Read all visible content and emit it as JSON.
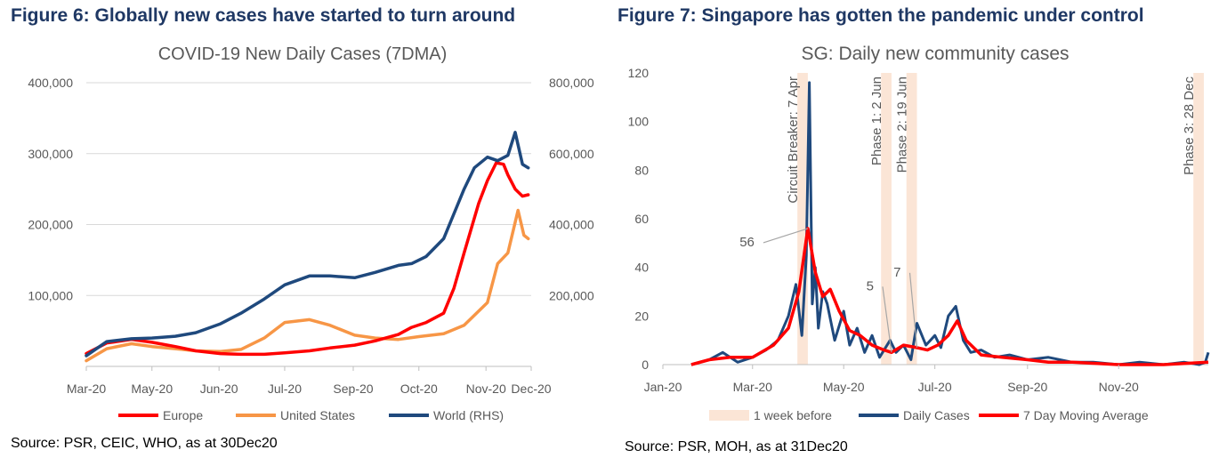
{
  "figures": [
    {
      "heading": "Figure 6: Globally new cases have started to turn around",
      "source": "Source: PSR, CEIC, WHO, as at 30Dec20"
    },
    {
      "heading": "Figure 7: Singapore has gotten the pandemic under control",
      "source": "Source: PSR, MOH, as at 31Dec20"
    }
  ],
  "chart_data": [
    {
      "type": "line",
      "title": "COVID-19 New Daily Cases (7DMA)",
      "xlabel": "",
      "ylabel": "",
      "x_ticks": [
        "Mar-20",
        "May-20",
        "Jun-20",
        "Jul-20",
        "Sep-20",
        "Oct-20",
        "Nov-20",
        "Dec-20"
      ],
      "ylim": [
        0,
        400000
      ],
      "y_ticks": [
        "400,000",
        "300,000",
        "200,000",
        "100,000"
      ],
      "ylim_right": [
        0,
        800000
      ],
      "y_ticks_right": [
        "800,000",
        "600,000",
        "400,000",
        "200,000"
      ],
      "grid": true,
      "legend_position": "bottom",
      "series": [
        {
          "name": "Europe",
          "axis": "left",
          "color": "#ff0000",
          "x": [
            "2020-03-01",
            "2020-03-15",
            "2020-04-01",
            "2020-04-15",
            "2020-05-01",
            "2020-05-15",
            "2020-06-01",
            "2020-06-15",
            "2020-07-01",
            "2020-07-15",
            "2020-08-01",
            "2020-08-15",
            "2020-09-01",
            "2020-09-15",
            "2020-10-01",
            "2020-10-10",
            "2020-10-20",
            "2020-11-01",
            "2020-11-08",
            "2020-11-15",
            "2020-11-25",
            "2020-12-01",
            "2020-12-07",
            "2020-12-12",
            "2020-12-15",
            "2020-12-20",
            "2020-12-25",
            "2020-12-29"
          ],
          "y": [
            18000,
            33000,
            38000,
            34000,
            28000,
            22000,
            18000,
            17000,
            17000,
            19000,
            22000,
            26000,
            30000,
            36000,
            45000,
            55000,
            62000,
            75000,
            110000,
            160000,
            230000,
            262000,
            287000,
            285000,
            270000,
            250000,
            240000,
            242000
          ]
        },
        {
          "name": "United States",
          "axis": "left",
          "color": "#f79646",
          "x": [
            "2020-03-01",
            "2020-03-15",
            "2020-04-01",
            "2020-04-15",
            "2020-05-01",
            "2020-05-15",
            "2020-06-01",
            "2020-06-15",
            "2020-07-01",
            "2020-07-15",
            "2020-08-01",
            "2020-08-15",
            "2020-09-01",
            "2020-09-15",
            "2020-10-01",
            "2020-10-15",
            "2020-11-01",
            "2020-11-15",
            "2020-12-01",
            "2020-12-08",
            "2020-12-15",
            "2020-12-22",
            "2020-12-26",
            "2020-12-29"
          ],
          "y": [
            8000,
            25000,
            32000,
            28000,
            25000,
            22000,
            21000,
            24000,
            40000,
            62000,
            66000,
            58000,
            44000,
            40000,
            38000,
            42000,
            46000,
            58000,
            90000,
            145000,
            160000,
            220000,
            185000,
            180000
          ]
        },
        {
          "name": "World (RHS)",
          "axis": "right",
          "color": "#1f497d",
          "x": [
            "2020-03-01",
            "2020-03-15",
            "2020-04-01",
            "2020-04-15",
            "2020-05-01",
            "2020-05-15",
            "2020-06-01",
            "2020-06-15",
            "2020-07-01",
            "2020-07-15",
            "2020-08-01",
            "2020-08-15",
            "2020-09-01",
            "2020-09-15",
            "2020-10-01",
            "2020-10-10",
            "2020-10-20",
            "2020-11-01",
            "2020-11-08",
            "2020-11-15",
            "2020-11-22",
            "2020-12-01",
            "2020-12-08",
            "2020-12-15",
            "2020-12-20",
            "2020-12-25",
            "2020-12-29"
          ],
          "y": [
            30000,
            70000,
            78000,
            80000,
            85000,
            95000,
            120000,
            150000,
            190000,
            230000,
            255000,
            255000,
            250000,
            265000,
            285000,
            290000,
            310000,
            360000,
            430000,
            500000,
            560000,
            590000,
            580000,
            595000,
            660000,
            570000,
            560000
          ]
        }
      ]
    },
    {
      "type": "line",
      "title": "SG: Daily new community cases",
      "xlabel": "",
      "ylabel": "",
      "x_ticks": [
        "Jan-20",
        "Mar-20",
        "May-20",
        "Jul-20",
        "Sep-20",
        "Nov-20"
      ],
      "ylim": [
        0,
        120
      ],
      "y_ticks": [
        "0",
        "20",
        "40",
        "60",
        "80",
        "100",
        "120"
      ],
      "grid": false,
      "legend_position": "bottom",
      "bands": {
        "name": "1 week before",
        "color": "#fbe5d6",
        "ranges": [
          [
            "2020-03-31",
            "2020-04-07"
          ],
          [
            "2020-05-26",
            "2020-06-02"
          ],
          [
            "2020-06-12",
            "2020-06-19"
          ],
          [
            "2020-12-21",
            "2020-12-28"
          ]
        ]
      },
      "vertical_labels": [
        "Circuit Breaker: 7 Apr",
        "Phase 1: 2 Jun",
        "Phase 2: 19 Jun",
        "Phase 3: 28 Dec"
      ],
      "annotations": [
        {
          "text": "56",
          "x": "2020-04-07",
          "y": 56
        },
        {
          "text": "5",
          "x": "2020-06-02",
          "y": 5
        },
        {
          "text": "7",
          "x": "2020-06-19",
          "y": 7
        }
      ],
      "series": [
        {
          "name": "Daily Cases",
          "color": "#1f497d",
          "x": [
            "2020-01-20",
            "2020-02-01",
            "2020-02-10",
            "2020-02-20",
            "2020-03-01",
            "2020-03-10",
            "2020-03-18",
            "2020-03-25",
            "2020-03-30",
            "2020-04-03",
            "2020-04-06",
            "2020-04-08",
            "2020-04-10",
            "2020-04-12",
            "2020-04-14",
            "2020-04-17",
            "2020-04-20",
            "2020-04-25",
            "2020-05-01",
            "2020-05-05",
            "2020-05-10",
            "2020-05-15",
            "2020-05-20",
            "2020-05-25",
            "2020-06-01",
            "2020-06-05",
            "2020-06-10",
            "2020-06-15",
            "2020-06-19",
            "2020-06-25",
            "2020-07-01",
            "2020-07-05",
            "2020-07-10",
            "2020-07-15",
            "2020-07-20",
            "2020-07-25",
            "2020-08-01",
            "2020-08-10",
            "2020-08-20",
            "2020-09-01",
            "2020-09-15",
            "2020-10-01",
            "2020-10-15",
            "2020-11-01",
            "2020-11-15",
            "2020-12-01",
            "2020-12-15",
            "2020-12-25",
            "2020-12-29",
            "2020-12-31"
          ],
          "y": [
            0,
            2,
            5,
            1,
            3,
            6,
            10,
            20,
            33,
            12,
            45,
            116,
            25,
            40,
            15,
            30,
            25,
            10,
            22,
            8,
            15,
            5,
            12,
            3,
            10,
            5,
            8,
            2,
            17,
            8,
            12,
            7,
            20,
            24,
            10,
            5,
            6,
            3,
            4,
            2,
            3,
            1,
            1,
            0,
            1,
            0,
            1,
            0,
            1,
            5
          ]
        },
        {
          "name": "7 Day Moving Average",
          "color": "#ff0000",
          "x": [
            "2020-01-20",
            "2020-02-01",
            "2020-02-15",
            "2020-03-01",
            "2020-03-15",
            "2020-03-25",
            "2020-04-01",
            "2020-04-07",
            "2020-04-12",
            "2020-04-17",
            "2020-04-22",
            "2020-04-28",
            "2020-05-05",
            "2020-05-12",
            "2020-05-20",
            "2020-05-28",
            "2020-06-02",
            "2020-06-10",
            "2020-06-19",
            "2020-06-26",
            "2020-07-03",
            "2020-07-10",
            "2020-07-16",
            "2020-07-22",
            "2020-08-01",
            "2020-08-15",
            "2020-09-01",
            "2020-09-15",
            "2020-10-01",
            "2020-11-01",
            "2020-12-01",
            "2020-12-31"
          ],
          "y": [
            0,
            2,
            3,
            3,
            8,
            15,
            30,
            56,
            38,
            28,
            31,
            22,
            14,
            12,
            8,
            6,
            5,
            8,
            7,
            6,
            8,
            12,
            18,
            10,
            4,
            3,
            2,
            1,
            1,
            0,
            0,
            1
          ]
        }
      ]
    }
  ]
}
